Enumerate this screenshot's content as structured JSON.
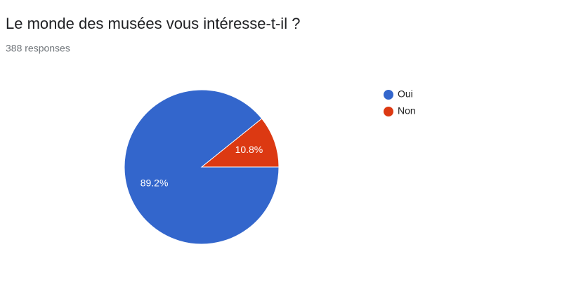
{
  "chart_data": {
    "type": "pie",
    "title": "Le monde des musées vous intéresse-t-il ?",
    "subtitle": "388 responses",
    "categories": [
      "Oui",
      "Non"
    ],
    "values": [
      89.2,
      10.8
    ],
    "value_labels": [
      "89.2%",
      "10.8%"
    ],
    "colors": [
      "#3366cc",
      "#dc3912"
    ],
    "legend": "right"
  }
}
